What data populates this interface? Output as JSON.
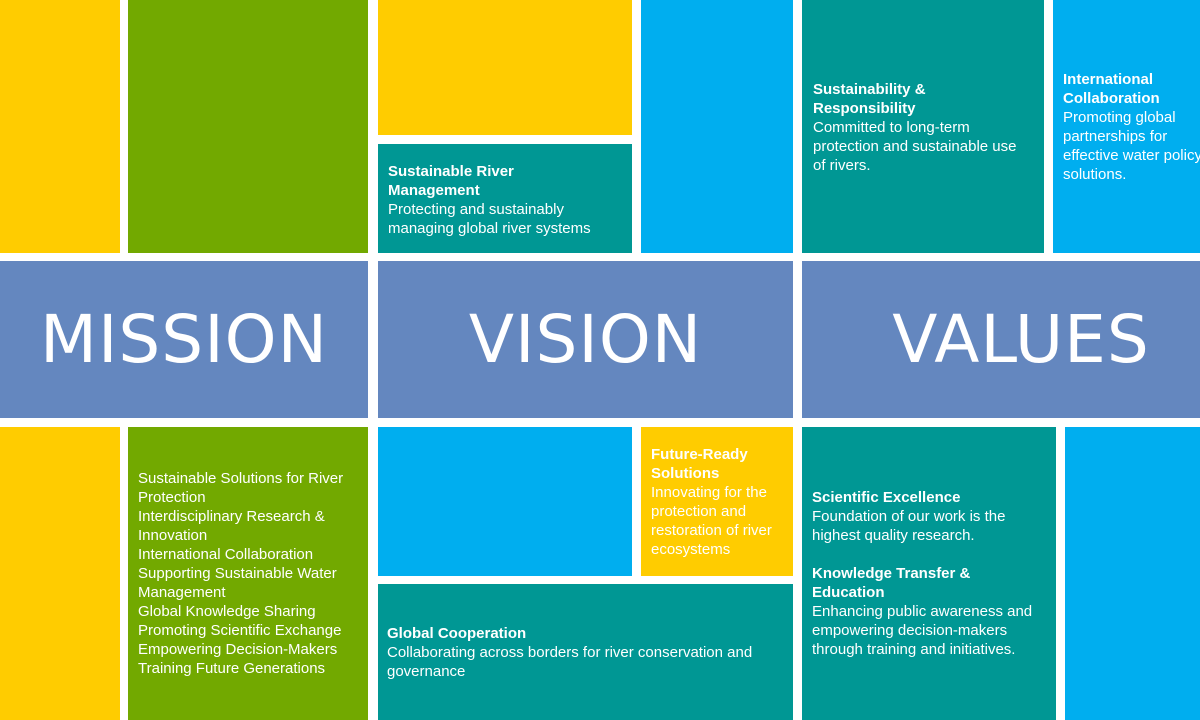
{
  "colors": {
    "yellow": "#FFCC00",
    "green": "#72A900",
    "blue": "#00AEEF",
    "teal": "#009794",
    "slate": "#6487BF"
  },
  "headings": {
    "mission": "MISSION",
    "vision": "VISION",
    "values": "VALUES"
  },
  "mission_list": [
    "Sustainable Solutions for River",
    "Protection",
    "Interdisciplinary Research &",
    "Innovation",
    "International Collaboration",
    "Supporting Sustainable Water",
    "Management",
    "Global Knowledge Sharing",
    "Promoting Scientific Exchange",
    "Empowering Decision-Makers",
    "Training Future Generations"
  ],
  "vision": {
    "river_management": {
      "title1": "Sustainable River",
      "title2": "Management",
      "l1": "Protecting and sustainably",
      "l2": "managing global river systems"
    },
    "future_ready": {
      "title1": "Future-Ready",
      "title2": "Solutions",
      "l1": "Innovating for the",
      "l2": "protection and",
      "l3": "restoration of river",
      "l4": "ecosystems"
    },
    "global_cooperation": {
      "title": "Global Cooperation",
      "l1": "Collaborating across borders for river conservation and",
      "l2": "governance"
    }
  },
  "values": {
    "sustainability": {
      "title1": "Sustainability &",
      "title2": "Responsibility",
      "l1": "Committed to long-term",
      "l2": "protection and sustainable use",
      "l3": "of rivers."
    },
    "international": {
      "title1": "International",
      "title2": "Collaboration",
      "l1": "Promoting global",
      "l2": "partnerships for",
      "l3": "effective water policy",
      "l4": "solutions."
    },
    "scientific": {
      "title": "Scientific Excellence",
      "l1": "Foundation of our work is the",
      "l2": "highest quality research."
    },
    "knowledge": {
      "title1": "Knowledge Transfer &",
      "title2": "Education",
      "l1": "Enhancing public awareness and",
      "l2": "empowering decision-makers",
      "l3": "through training and initiatives."
    }
  }
}
